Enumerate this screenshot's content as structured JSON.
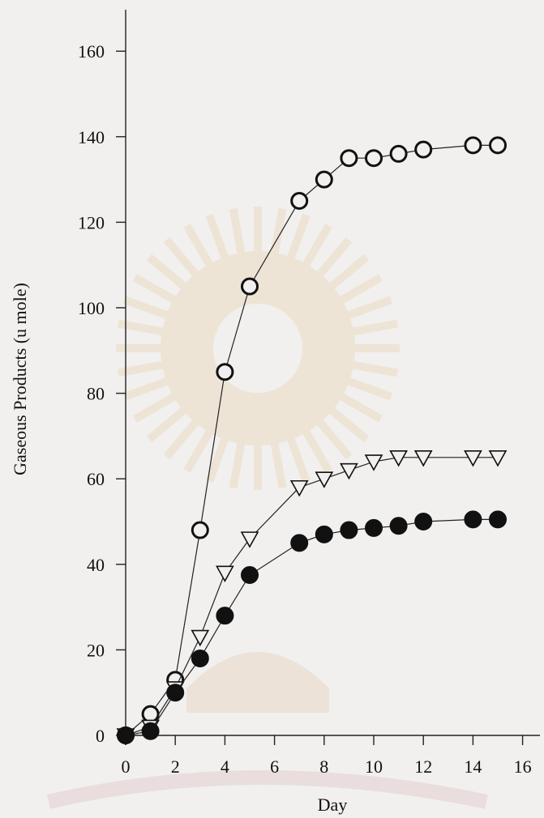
{
  "chart_data": {
    "type": "line",
    "xlabel": "Day",
    "ylabel": "Gaseous Products (u mole)",
    "xlim": [
      0,
      16.5
    ],
    "ylim": [
      0,
      170
    ],
    "xticks": [
      0,
      2,
      4,
      6,
      8,
      10,
      12,
      14,
      16
    ],
    "yticks": [
      0,
      20,
      40,
      60,
      80,
      100,
      120,
      140,
      160
    ],
    "grid": false,
    "legend": "none",
    "watermark": "university seal",
    "series": [
      {
        "marker": "open-circle",
        "x": [
          0,
          1,
          2,
          3,
          4,
          5,
          7,
          8,
          9,
          10,
          11,
          12,
          14,
          15
        ],
        "y": [
          0,
          5,
          13,
          48,
          85,
          105,
          125,
          130,
          135,
          135,
          136,
          137,
          138,
          138
        ]
      },
      {
        "marker": "open-down-triangle",
        "x": [
          0,
          1,
          2,
          3,
          4,
          5,
          7,
          8,
          9,
          10,
          11,
          12,
          14,
          15
        ],
        "y": [
          0,
          2,
          11,
          23,
          38,
          46,
          58,
          60,
          62,
          64,
          65,
          65,
          65,
          65
        ]
      },
      {
        "marker": "filled-circle",
        "x": [
          0,
          1,
          2,
          3,
          4,
          5,
          7,
          8,
          9,
          10,
          11,
          12,
          14,
          15
        ],
        "y": [
          0,
          1,
          10,
          18,
          28,
          37.5,
          45,
          47,
          48,
          48.5,
          49,
          50,
          50.5,
          50.5
        ]
      }
    ]
  }
}
